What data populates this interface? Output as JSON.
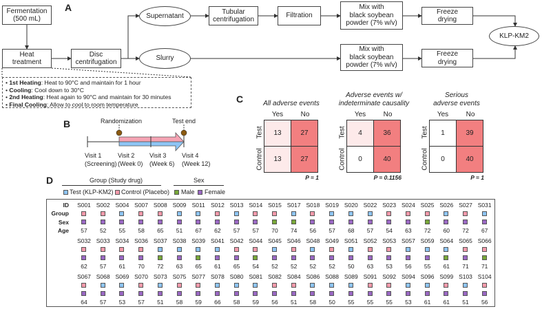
{
  "panel_labels": {
    "a": "A",
    "b": "B",
    "c": "C",
    "d": "D"
  },
  "flow": {
    "fermentation": "Fermentation\n(500 mL)",
    "heat": "Heat\ntreatment",
    "disc": "Disc\ncentrifugation",
    "supernatant": "Supernatant",
    "slurry": "Slurry",
    "tubular": "Tubular\ncentrifugation",
    "filtration": "Filtration",
    "mix1": "Mix with\nblack soybean\npowder (7% w/v)",
    "mix2": "Mix with\nblack soybean\npowder (7% w/v)",
    "freeze1": "Freeze\ndrying",
    "freeze2": "Freeze\ndrying",
    "product": "KLP-KM2"
  },
  "heat_steps": [
    {
      "name": "1st Heating",
      "desc": ": Heat to 90°C and maintain for 1 hour"
    },
    {
      "name": "Cooling",
      "desc": ": Cool down to 30°C"
    },
    {
      "name": "2nd Heating",
      "desc": ": Heat again to 90°C and maintain for 30 minutes"
    },
    {
      "name": "Final Cooling",
      "desc": ": Allow to cool to room temperature"
    }
  ],
  "timeline": {
    "randomization": "Randomization",
    "test_end": "Test end",
    "visits": [
      {
        "name": "Visit 1",
        "sub": "(Screening)"
      },
      {
        "name": "Visit 2",
        "sub": "(Week 0)"
      },
      {
        "name": "Visit 3",
        "sub": "(Week 6)"
      },
      {
        "name": "Visit 4",
        "sub": "(Week 12)"
      }
    ],
    "colors": {
      "test": "#8ec5f5",
      "control": "#f5a3b3",
      "marker": "#8b5a10"
    }
  },
  "adverse": {
    "col_labels": [
      "Yes",
      "No"
    ],
    "row_labels": [
      "Test",
      "Control"
    ],
    "tables": [
      {
        "title": "All adverse events",
        "values": [
          [
            13,
            27
          ],
          [
            13,
            27
          ]
        ],
        "p": "P = 1"
      },
      {
        "title": "Adverse events w/\nindeterminate causality",
        "values": [
          [
            4,
            36
          ],
          [
            0,
            40
          ]
        ],
        "p": "P = 0.1156"
      },
      {
        "title": "Serious\nadverse events",
        "values": [
          [
            1,
            39
          ],
          [
            0,
            40
          ]
        ],
        "p": "P = 1"
      }
    ],
    "colors": {
      "high": "#f27f80",
      "low": "#fdeaea",
      "none": "#ffffff"
    }
  },
  "legend": {
    "group_title": "Group (Study drug)",
    "test": "Test (KLP-KM2)",
    "control": "Control (Placebo)",
    "sex_title": "Sex",
    "male": "Male",
    "female": "Female",
    "colors": {
      "test": "#8ec5f5",
      "control": "#f59aab",
      "male": "#78a838",
      "female": "#9a68c4"
    }
  },
  "table": {
    "row_labels": [
      "ID",
      "Group",
      "Sex",
      "Age"
    ],
    "rows": [
      {
        "ids": [
          "S001",
          "S002",
          "S004",
          "S007",
          "S008",
          "S009",
          "S011",
          "S012",
          "S013",
          "S014",
          "S015",
          "S017",
          "S018",
          "S019",
          "S020",
          "S022",
          "S023",
          "S024",
          "S025",
          "S026",
          "S027",
          "S031"
        ],
        "group": "CCTCCTTCTCCTCTTTCCCTCT",
        "sex": "FFFFFFFFFFMMFFFFFFMFFF",
        "age": [
          57,
          52,
          55,
          58,
          65,
          51,
          67,
          62,
          57,
          57,
          70,
          74,
          56,
          57,
          68,
          57,
          54,
          63,
          72,
          60,
          72,
          67
        ]
      },
      {
        "ids": [
          "S032",
          "S033",
          "S034",
          "S036",
          "S037",
          "S038",
          "S039",
          "S041",
          "S042",
          "S044",
          "S045",
          "S046",
          "S048",
          "S049",
          "S051",
          "S052",
          "S053",
          "S057",
          "S059",
          "S064",
          "S065",
          "S066"
        ],
        "group": "CCCCTTTTCCTCTCTCCTTTCC",
        "sex": "FFFFMFMFFMFFFFFFFFFMFM",
        "age": [
          62,
          57,
          61,
          70,
          72,
          63,
          65,
          61,
          65,
          54,
          52,
          52,
          52,
          52,
          50,
          63,
          53,
          56,
          55,
          61,
          71,
          71
        ]
      },
      {
        "ids": [
          "S067",
          "S068",
          "S069",
          "S070",
          "S073",
          "S075",
          "S077",
          "S078",
          "S080",
          "S081",
          "S082",
          "S084",
          "S086",
          "S088",
          "S089",
          "S091",
          "S092",
          "S094",
          "S096",
          "S099",
          "S103",
          "S104"
        ],
        "group": "CTTCTCCTTTCCTTTCCTTCTC",
        "sex": "FFFFFFFFFFFFFFFFFFFFFF",
        "age": [
          64,
          57,
          53,
          57,
          51,
          58,
          59,
          66,
          58,
          59,
          56,
          51,
          58,
          50,
          55,
          55,
          55,
          53,
          61,
          61,
          51,
          56
        ]
      }
    ]
  }
}
